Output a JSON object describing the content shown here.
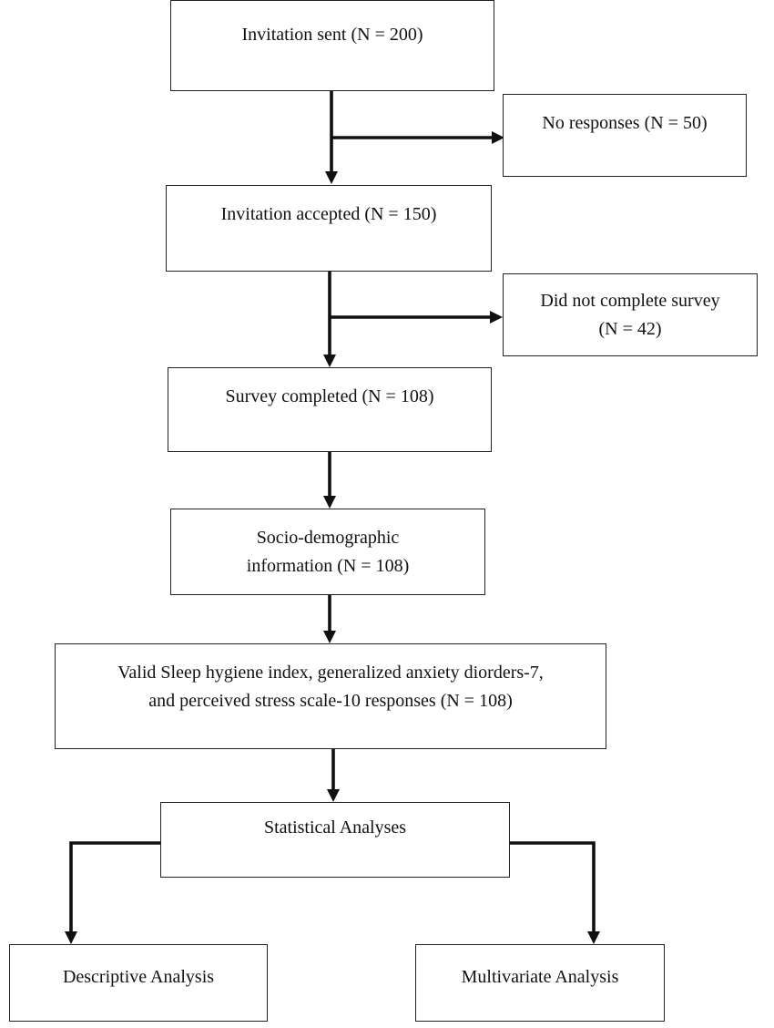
{
  "flowchart": {
    "invitation_sent": "Invitation sent (N = 200)",
    "no_responses": "No responses (N = 50)",
    "invitation_accepted": "Invitation accepted (N = 150)",
    "did_not_complete": [
      "Did not complete survey",
      "(N = 42)"
    ],
    "survey_completed": "Survey completed (N = 108)",
    "socio_demographic": [
      "Socio-demographic",
      "information (N = 108)"
    ],
    "valid_responses": [
      "Valid Sleep hygiene index, generalized anxiety diorders-7,",
      "and perceived stress scale-10 responses (N = 108)"
    ],
    "statistical_analyses": "Statistical Analyses",
    "descriptive_analysis": "Descriptive Analysis",
    "multivariate_analysis": "Multivariate Analysis"
  }
}
